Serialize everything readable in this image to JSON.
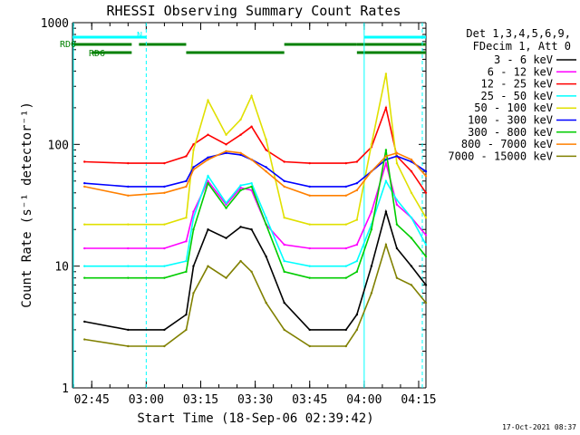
{
  "chart_data": {
    "type": "line",
    "title": "RHESSI Observing Summary Count Rates",
    "xlabel": "Start Time (18-Sep-06 02:39:42)",
    "ylabel": "Count Rate (s⁻¹ detector⁻¹)",
    "y_scale": "log",
    "ylim": [
      1,
      1000
    ],
    "xlim": [
      "02:39:42",
      "04:17:00"
    ],
    "x_tick_labels": [
      "02:45",
      "03:00",
      "03:15",
      "03:30",
      "03:45",
      "04:00",
      "04:15"
    ],
    "y_tick_labels": [
      "1",
      "10",
      "100",
      "1000"
    ],
    "footer": "17-Oct-2021 08:37",
    "legend_header": [
      "Det 1,3,4,5,6,9,",
      "FDecim 1, Att 0"
    ],
    "legend_position": "right",
    "annotations": {
      "rd0_label": "RD0",
      "rd6_label": "RD6",
      "n_label": "N"
    },
    "night_intervals": [
      [
        "02:39:42",
        "03:00"
      ],
      [
        "04:00",
        "04:17"
      ]
    ],
    "rd0_segments": [
      [
        "02:39:42",
        "02:56"
      ],
      [
        "02:58",
        "03:11"
      ],
      [
        "03:38",
        "03:58"
      ],
      [
        "03:58",
        "04:17"
      ]
    ],
    "rd6_segments": [
      [
        "02:45",
        "02:56"
      ],
      [
        "03:11",
        "03:38"
      ],
      [
        "03:58",
        "04:17"
      ]
    ],
    "eclipse_boundaries": [
      "03:00",
      "04:00",
      "04:16"
    ],
    "x": [
      "02:43",
      "02:55",
      "03:05",
      "03:11",
      "03:13",
      "03:17",
      "03:22",
      "03:26",
      "03:29",
      "03:33",
      "03:38",
      "03:45",
      "03:55",
      "03:58",
      "04:02",
      "04:06",
      "04:09",
      "04:13",
      "04:17"
    ],
    "series": [
      {
        "name": "3 - 6 keV",
        "color": "#000000",
        "values": [
          3.5,
          3,
          3,
          4,
          10,
          20,
          17,
          21,
          20,
          12,
          5,
          3,
          3,
          4,
          10,
          28,
          14,
          10,
          7
        ]
      },
      {
        "name": "6 - 12 keV",
        "color": "#ff00ff",
        "values": [
          14,
          14,
          14,
          16,
          28,
          50,
          32,
          44,
          42,
          22,
          15,
          14,
          14,
          15,
          28,
          70,
          32,
          25,
          18
        ]
      },
      {
        "name": "12 - 25 keV",
        "color": "#ff0000",
        "values": [
          72,
          70,
          70,
          80,
          100,
          120,
          100,
          120,
          140,
          90,
          72,
          70,
          70,
          72,
          95,
          200,
          80,
          60,
          40
        ]
      },
      {
        "name": "25 - 50 keV",
        "color": "#00ffff",
        "values": [
          10,
          10,
          10,
          11,
          25,
          55,
          33,
          46,
          48,
          25,
          11,
          10,
          10,
          11,
          22,
          50,
          35,
          25,
          15
        ]
      },
      {
        "name": "50 - 100 keV",
        "color": "#e0e000",
        "values": [
          22,
          22,
          22,
          25,
          90,
          230,
          120,
          160,
          250,
          110,
          25,
          22,
          22,
          24,
          100,
          380,
          70,
          40,
          25
        ]
      },
      {
        "name": "100 - 300 keV",
        "color": "#0000ff",
        "values": [
          48,
          45,
          45,
          50,
          65,
          78,
          85,
          82,
          75,
          65,
          50,
          45,
          45,
          48,
          60,
          75,
          80,
          72,
          60
        ]
      },
      {
        "name": "300 - 800 keV",
        "color": "#00cc00",
        "values": [
          8,
          8,
          8,
          9,
          20,
          48,
          30,
          42,
          45,
          22,
          9,
          8,
          8,
          9,
          20,
          90,
          22,
          17,
          12
        ]
      },
      {
        "name": "800 - 7000 keV",
        "color": "#ff8000",
        "values": [
          45,
          38,
          40,
          45,
          62,
          75,
          88,
          85,
          75,
          60,
          45,
          38,
          38,
          42,
          60,
          80,
          85,
          75,
          55
        ]
      },
      {
        "name": "7000 - 15000 keV",
        "color": "#808000",
        "values": [
          2.5,
          2.2,
          2.2,
          3,
          6,
          10,
          8,
          11,
          9,
          5,
          3,
          2.2,
          2.2,
          3,
          6,
          15,
          8,
          7,
          5
        ]
      }
    ],
    "grid": false
  },
  "colors": {
    "axis": "#000000",
    "rd_bar": "#008000",
    "night_bar": "#00ffff"
  }
}
